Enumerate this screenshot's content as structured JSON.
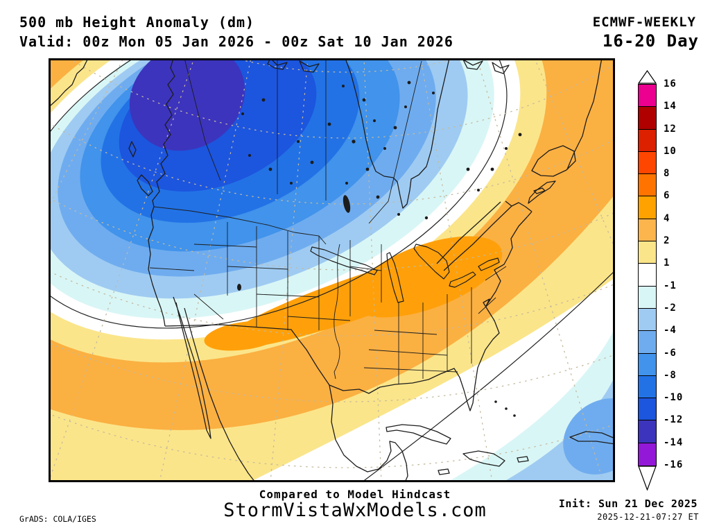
{
  "header": {
    "product": "500 mb Height Anomaly (dm)",
    "valid": "Valid: 00z Mon 05 Jan 2026 - 00z Sat 10 Jan 2026",
    "model": "ECMWF-WEEKLY",
    "range": "16-20 Day"
  },
  "footer": {
    "compare": "Compared to Model Hindcast",
    "site": "StormVistaWxModels.com",
    "grads": "GrADS: COLA/IGES",
    "init": "Init: Sun 21 Dec 2025",
    "init_time": "2025-12-21-07:27 ET"
  },
  "colorbar": {
    "units": "dm",
    "ticks": [
      "16",
      "14",
      "12",
      "10",
      "8",
      "6",
      "4",
      "2",
      "1",
      "-1",
      "-2",
      "-4",
      "-6",
      "-8",
      "-10",
      "-12",
      "-14",
      "-16"
    ],
    "segment_colors": [
      "#EC0090",
      "#B00000",
      "#DC2000",
      "#FF4600",
      "#FF7400",
      "#FFA200",
      "#FCB44D",
      "#FBE58A",
      "#FFFFFF",
      "#D9F6F6",
      "#9FCBF2",
      "#6FACEF",
      "#4193EB",
      "#2272E6",
      "#1C55DE",
      "#3C34BD",
      "#9418D8"
    ]
  },
  "palette": {
    "pos_1_2": "#FBE58A",
    "pos_2_4": "#FBB042",
    "pos_4_6": "#FFA00A",
    "neg_1_2": "#D9F6F6",
    "neg_2_4": "#9FCBF2",
    "neg_4_6": "#6FACEF",
    "neg_6_8": "#4193EB",
    "neg_8_10": "#2272E6",
    "neg_10_12": "#1C55DE",
    "neg_12_14": "#3C34BD",
    "white": "#FFFFFF",
    "coast_line": "#1c1c1c",
    "grid_dots": "#c4b99d",
    "frame": "#000000"
  },
  "map_features": {
    "negative_center": {
      "location": "western Canada / British Columbia",
      "band_dm": "-12 to -14"
    },
    "positive_band": {
      "location": "southwest US through Ohio Valley to eastern Canada",
      "max_band_dm": "+4 to +6"
    },
    "caribbean_negative": {
      "location": "Atlantic / Caribbean southeast corner",
      "band_dm": "-4 to -6"
    }
  }
}
